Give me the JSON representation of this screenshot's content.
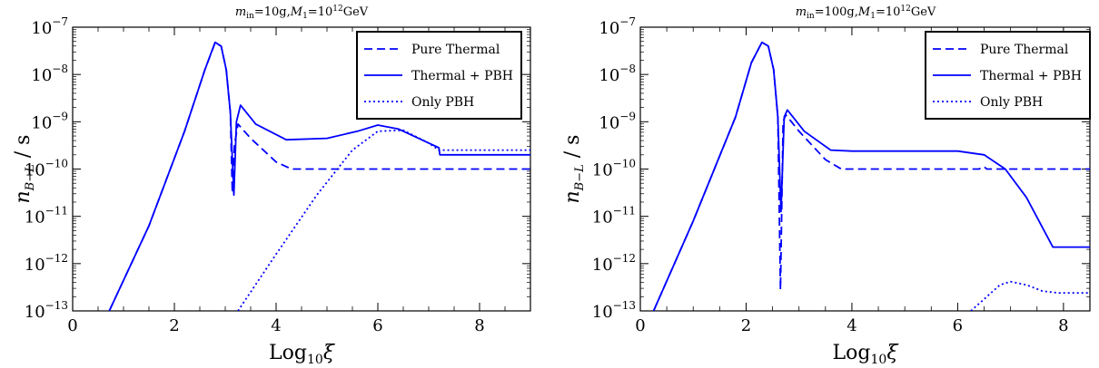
{
  "chart_data": [
    {
      "type": "line",
      "title_parts": {
        "m": "m",
        "m_sub": "in",
        "m_val": "=10g,",
        "M": "M",
        "M_sub": "1",
        "M_val": "=10",
        "M_exp": "12",
        "unit": "GeV"
      },
      "xlabel": {
        "base": "Log",
        "sub": "10",
        "var": "ξ"
      },
      "ylabel": {
        "base": "n",
        "sub": "B−L",
        "rest": " / s"
      },
      "xlim": [
        0,
        9
      ],
      "ylim_log10": [
        -13,
        -7
      ],
      "y_scale": "log",
      "x_ticks": [
        0,
        2,
        4,
        6,
        8
      ],
      "x_tick_labels": [
        "0",
        "2",
        "4",
        "6",
        "8"
      ],
      "y_ticks_exp": [
        -13,
        -12,
        -11,
        -10,
        -9,
        -8,
        -7
      ],
      "y_tick_labels": [
        "−13",
        "−12",
        "−11",
        "−10",
        "−9",
        "−8",
        "−7"
      ],
      "y_tick_base": "10",
      "legend_placement": "top-right",
      "series": [
        {
          "name": "Pure Thermal",
          "style": "dashed",
          "color": "#0000ff",
          "points": [
            [
              0.72,
              -13
            ],
            [
              1.5,
              -11.2
            ],
            [
              2.2,
              -9.2
            ],
            [
              2.6,
              -7.9
            ],
            [
              2.8,
              -7.33
            ],
            [
              2.92,
              -7.4
            ],
            [
              3.02,
              -7.9
            ],
            [
              3.1,
              -8.8
            ],
            [
              3.14,
              -10.5
            ],
            [
              3.18,
              -9.5
            ],
            [
              3.25,
              -9.05
            ],
            [
              3.5,
              -9.35
            ],
            [
              4.0,
              -9.85
            ],
            [
              4.3,
              -10.0
            ],
            [
              5.0,
              -10.0
            ],
            [
              9.0,
              -10.0
            ]
          ]
        },
        {
          "name": "Thermal + PBH",
          "style": "solid",
          "color": "#0000ff",
          "points": [
            [
              0.72,
              -13
            ],
            [
              1.5,
              -11.2
            ],
            [
              2.2,
              -9.2
            ],
            [
              2.6,
              -7.9
            ],
            [
              2.8,
              -7.32
            ],
            [
              2.92,
              -7.4
            ],
            [
              3.02,
              -7.9
            ],
            [
              3.1,
              -8.8
            ],
            [
              3.17,
              -10.55
            ],
            [
              3.22,
              -9.0
            ],
            [
              3.3,
              -8.65
            ],
            [
              3.6,
              -9.05
            ],
            [
              4.2,
              -9.38
            ],
            [
              5.0,
              -9.35
            ],
            [
              5.6,
              -9.2
            ],
            [
              6.0,
              -9.07
            ],
            [
              6.4,
              -9.15
            ],
            [
              7.0,
              -9.45
            ],
            [
              7.2,
              -9.55
            ],
            [
              7.22,
              -9.7
            ],
            [
              9.0,
              -9.7
            ]
          ]
        },
        {
          "name": "Only PBH",
          "style": "dotted",
          "color": "#0000ff",
          "points": [
            [
              3.25,
              -13
            ],
            [
              4.0,
              -11.8
            ],
            [
              4.8,
              -10.55
            ],
            [
              5.5,
              -9.6
            ],
            [
              6.0,
              -9.2
            ],
            [
              6.5,
              -9.18
            ],
            [
              7.0,
              -9.45
            ],
            [
              7.2,
              -9.6
            ],
            [
              9.0,
              -9.6
            ]
          ]
        }
      ]
    },
    {
      "type": "line",
      "title_parts": {
        "m": "m",
        "m_sub": "in",
        "m_val": "=100g,",
        "M": "M",
        "M_sub": "1",
        "M_val": "=10",
        "M_exp": "12",
        "unit": "GeV"
      },
      "xlabel": {
        "base": "Log",
        "sub": "10",
        "var": "ξ"
      },
      "ylabel": {
        "base": "n",
        "sub": "B−L",
        "rest": " / s"
      },
      "xlim": [
        0,
        8.5
      ],
      "ylim_log10": [
        -13,
        -7
      ],
      "y_scale": "log",
      "x_ticks": [
        0,
        2,
        4,
        6,
        8
      ],
      "x_tick_labels": [
        "0",
        "2",
        "4",
        "6",
        "8"
      ],
      "y_ticks_exp": [
        -13,
        -12,
        -11,
        -10,
        -9,
        -8,
        -7
      ],
      "y_tick_labels": [
        "−13",
        "−12",
        "−11",
        "−10",
        "−9",
        "−8",
        "−7"
      ],
      "y_tick_base": "10",
      "legend_placement": "top-right",
      "series": [
        {
          "name": "Pure Thermal",
          "style": "dashed",
          "color": "#0000ff",
          "points": [
            [
              0.25,
              -13
            ],
            [
              1.0,
              -11.1
            ],
            [
              1.8,
              -8.9
            ],
            [
              2.1,
              -7.75
            ],
            [
              2.3,
              -7.32
            ],
            [
              2.42,
              -7.4
            ],
            [
              2.52,
              -7.9
            ],
            [
              2.6,
              -8.9
            ],
            [
              2.65,
              -12.55
            ],
            [
              2.7,
              -9.0
            ],
            [
              2.75,
              -8.85
            ],
            [
              3.0,
              -9.2
            ],
            [
              3.5,
              -9.8
            ],
            [
              3.8,
              -10.0
            ],
            [
              6.4,
              -10.0
            ],
            [
              6.5,
              -9.95
            ],
            [
              6.55,
              -10.0
            ],
            [
              8.5,
              -10.0
            ]
          ]
        },
        {
          "name": "Thermal + PBH",
          "style": "solid",
          "color": "#0000ff",
          "points": [
            [
              0.25,
              -13
            ],
            [
              1.0,
              -11.1
            ],
            [
              1.8,
              -8.9
            ],
            [
              2.1,
              -7.75
            ],
            [
              2.3,
              -7.32
            ],
            [
              2.42,
              -7.4
            ],
            [
              2.52,
              -7.9
            ],
            [
              2.6,
              -8.9
            ],
            [
              2.66,
              -10.9
            ],
            [
              2.72,
              -8.9
            ],
            [
              2.78,
              -8.75
            ],
            [
              3.1,
              -9.2
            ],
            [
              3.6,
              -9.6
            ],
            [
              4.0,
              -9.62
            ],
            [
              6.0,
              -9.62
            ],
            [
              6.5,
              -9.7
            ],
            [
              6.9,
              -10.0
            ],
            [
              7.3,
              -10.6
            ],
            [
              7.8,
              -11.65
            ],
            [
              8.5,
              -11.65
            ]
          ]
        },
        {
          "name": "Only PBH",
          "style": "dotted",
          "color": "#0000ff",
          "points": [
            [
              6.25,
              -13
            ],
            [
              6.5,
              -12.75
            ],
            [
              6.8,
              -12.45
            ],
            [
              7.0,
              -12.38
            ],
            [
              7.3,
              -12.45
            ],
            [
              7.6,
              -12.58
            ],
            [
              7.9,
              -12.62
            ],
            [
              8.5,
              -12.62
            ]
          ]
        }
      ]
    }
  ]
}
